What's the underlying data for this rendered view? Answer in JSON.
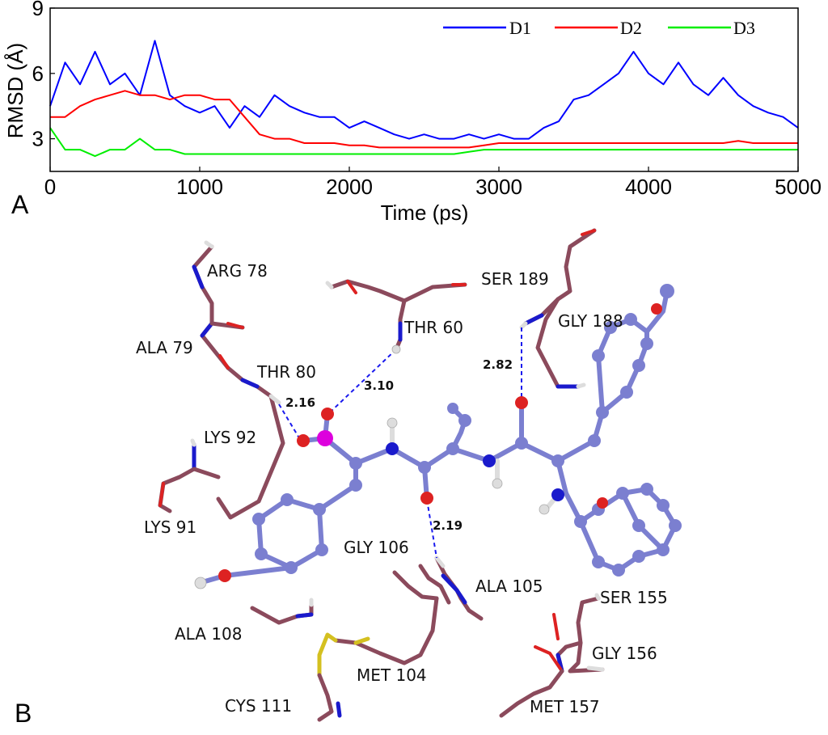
{
  "chart_data": {
    "type": "line",
    "xlabel": "Time (ps)",
    "ylabel": "RMSD (Å)",
    "xlim": [
      0,
      5000
    ],
    "ylim": [
      1.5,
      9
    ],
    "xticks": [
      "0",
      "1000",
      "2000",
      "3000",
      "4000",
      "5000"
    ],
    "yticks": [
      "3",
      "6",
      "9"
    ],
    "grid": false,
    "legend_position": "top-right",
    "x": [
      0,
      100,
      200,
      300,
      400,
      500,
      600,
      700,
      800,
      900,
      1000,
      1100,
      1200,
      1300,
      1400,
      1500,
      1600,
      1700,
      1800,
      1900,
      2000,
      2100,
      2200,
      2300,
      2400,
      2500,
      2600,
      2700,
      2800,
      2900,
      3000,
      3100,
      3200,
      3300,
      3400,
      3500,
      3600,
      3700,
      3800,
      3900,
      4000,
      4100,
      4200,
      4300,
      4400,
      4500,
      4600,
      4700,
      4800,
      4900,
      5000
    ],
    "series": [
      {
        "name": "D1",
        "color": "#0000ff",
        "values": [
          4.5,
          6.5,
          5.5,
          7.0,
          5.5,
          6.0,
          5.0,
          7.5,
          5.0,
          4.5,
          4.2,
          4.5,
          3.5,
          4.5,
          4.0,
          5.0,
          4.5,
          4.2,
          4.0,
          4.0,
          3.5,
          3.8,
          3.5,
          3.2,
          3.0,
          3.2,
          3.0,
          3.0,
          3.2,
          3.0,
          3.2,
          3.0,
          3.0,
          3.5,
          3.8,
          4.8,
          5.0,
          5.5,
          6.0,
          7.0,
          6.0,
          5.5,
          6.5,
          5.5,
          5.0,
          5.8,
          5.0,
          4.5,
          4.2,
          4.0,
          3.5
        ]
      },
      {
        "name": "D2",
        "color": "#ff0000",
        "values": [
          4.0,
          4.0,
          4.5,
          4.8,
          5.0,
          5.2,
          5.0,
          5.0,
          4.8,
          5.0,
          5.0,
          4.8,
          4.8,
          4.0,
          3.2,
          3.0,
          3.0,
          2.8,
          2.8,
          2.8,
          2.7,
          2.7,
          2.6,
          2.6,
          2.6,
          2.6,
          2.6,
          2.6,
          2.6,
          2.7,
          2.8,
          2.8,
          2.8,
          2.8,
          2.8,
          2.8,
          2.8,
          2.8,
          2.8,
          2.8,
          2.8,
          2.8,
          2.8,
          2.8,
          2.8,
          2.8,
          2.9,
          2.8,
          2.8,
          2.8,
          2.8
        ]
      },
      {
        "name": "D3",
        "color": "#00ee00",
        "values": [
          3.5,
          2.5,
          2.5,
          2.2,
          2.5,
          2.5,
          3.0,
          2.5,
          2.5,
          2.3,
          2.3,
          2.3,
          2.3,
          2.3,
          2.3,
          2.3,
          2.3,
          2.3,
          2.3,
          2.3,
          2.3,
          2.3,
          2.3,
          2.3,
          2.3,
          2.3,
          2.3,
          2.3,
          2.4,
          2.5,
          2.5,
          2.5,
          2.5,
          2.5,
          2.5,
          2.5,
          2.5,
          2.5,
          2.5,
          2.5,
          2.5,
          2.5,
          2.5,
          2.5,
          2.5,
          2.5,
          2.5,
          2.5,
          2.5,
          2.5,
          2.5
        ]
      }
    ]
  },
  "panels": {
    "a": "A",
    "b": "B"
  },
  "structure": {
    "residue_labels": [
      "ARG 78",
      "ALA 79",
      "THR 80",
      "LYS 92",
      "LYS 91",
      "THR 60",
      "SER 189",
      "GLY 188",
      "GLY 106",
      "ALA 105",
      "SER 155",
      "GLY 156",
      "ALA 108",
      "MET 104",
      "CYS 111",
      "MET 157"
    ],
    "hbond_distances": [
      "2.16",
      "3.10",
      "2.82",
      "2.19"
    ],
    "colors": {
      "protein": "#8b4a5c",
      "ligand": "#7b7fd0",
      "nitrogen": "#1a1acc",
      "oxygen": "#dd2222",
      "phosphorus": "#dd00dd",
      "sulfur": "#d4c020",
      "hydrogen": "#dddddd",
      "hbond": "#1a1aee"
    }
  }
}
